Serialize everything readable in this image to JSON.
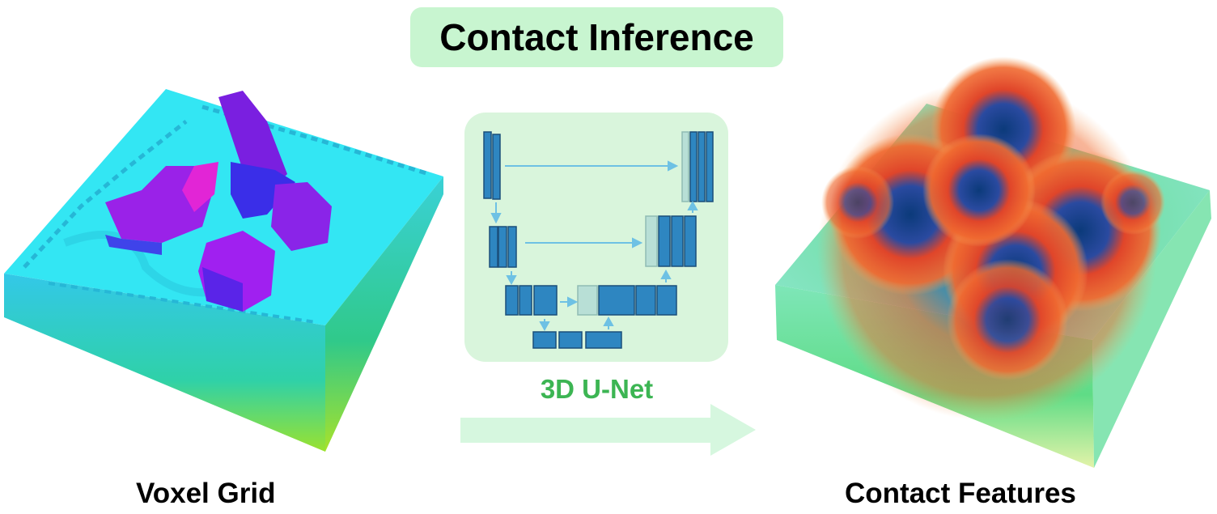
{
  "title": "Contact Inference",
  "network_label": "3D U-Net",
  "input_label": "Voxel Grid",
  "output_label": "Contact Features",
  "colors": {
    "title_bg": "#c8f5d0",
    "network_label": "#3cb553",
    "network_panel": "#d9f5dc",
    "block_fill": "#2e86c1",
    "block_stroke": "#1a4f7a",
    "skip_arrow": "#6ec1e4",
    "flow_arrow": "#d6f7df"
  }
}
